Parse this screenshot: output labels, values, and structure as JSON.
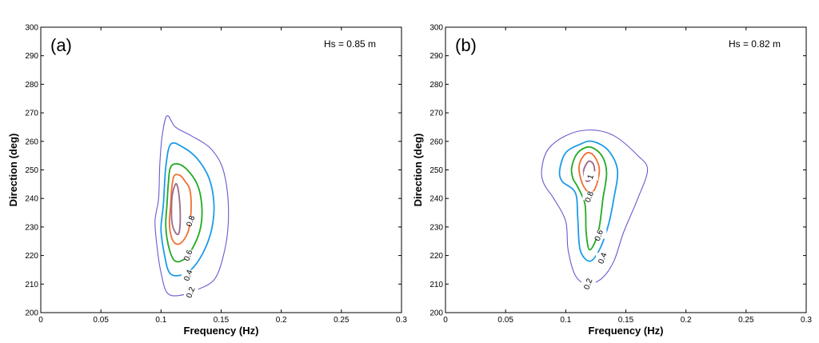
{
  "chart_data": [
    {
      "type": "contour",
      "panel_label": "(a)",
      "annotation": "Hs = 0.85 m",
      "xlabel": "Frequency (Hz)",
      "ylabel": "Direction (deg)",
      "xlim": [
        0,
        0.3
      ],
      "ylim": [
        200,
        300
      ],
      "xticks": [
        "0",
        "0.05",
        "0.1",
        "0.15",
        "0.2",
        "0.25",
        "0.3"
      ],
      "yticks": [
        "200",
        "210",
        "220",
        "230",
        "240",
        "250",
        "260",
        "270",
        "280",
        "290",
        "300"
      ],
      "grid": false,
      "levels": [
        {
          "level": 0.2,
          "label": "0.2",
          "color": "#6a5acd",
          "label_at": [
            0.125,
            207
          ],
          "points": [
            [
              0.098,
              240
            ],
            [
              0.095,
              232
            ],
            [
              0.097,
              222
            ],
            [
              0.1,
              214
            ],
            [
              0.105,
              207
            ],
            [
              0.115,
              206
            ],
            [
              0.13,
              208
            ],
            [
              0.145,
              212
            ],
            [
              0.153,
              222
            ],
            [
              0.156,
              232
            ],
            [
              0.155,
              243
            ],
            [
              0.15,
              252
            ],
            [
              0.14,
              258
            ],
            [
              0.125,
              262
            ],
            [
              0.112,
              265
            ],
            [
              0.105,
              269
            ],
            [
              0.101,
              262
            ],
            [
              0.099,
              252
            ]
          ]
        },
        {
          "level": 0.4,
          "label": "0.4",
          "color": "#1e9be8",
          "label_at": [
            0.123,
            213
          ],
          "points": [
            [
              0.102,
              238
            ],
            [
              0.1,
              229
            ],
            [
              0.103,
              220
            ],
            [
              0.107,
              214
            ],
            [
              0.115,
              213
            ],
            [
              0.125,
              215
            ],
            [
              0.135,
              221
            ],
            [
              0.142,
              229
            ],
            [
              0.144,
              238
            ],
            [
              0.14,
              247
            ],
            [
              0.13,
              254
            ],
            [
              0.118,
              258
            ],
            [
              0.108,
              259
            ],
            [
              0.104,
              251
            ]
          ]
        },
        {
          "level": 0.6,
          "label": "0.6",
          "color": "#22aa22",
          "label_at": [
            0.123,
            220
          ],
          "points": [
            [
              0.105,
              238
            ],
            [
              0.104,
              230
            ],
            [
              0.107,
              222
            ],
            [
              0.112,
              218
            ],
            [
              0.12,
              219
            ],
            [
              0.128,
              224
            ],
            [
              0.133,
              230
            ],
            [
              0.134,
              237
            ],
            [
              0.131,
              244
            ],
            [
              0.124,
              249
            ],
            [
              0.115,
              252
            ],
            [
              0.108,
              251
            ],
            [
              0.106,
              245
            ]
          ]
        },
        {
          "level": 0.8,
          "label": "0.8",
          "color": "#f07030",
          "label_at": [
            0.125,
            232
          ],
          "points": [
            [
              0.108,
              238
            ],
            [
              0.107,
              231
            ],
            [
              0.109,
              226
            ],
            [
              0.113,
              224
            ],
            [
              0.118,
              225
            ],
            [
              0.123,
              229
            ],
            [
              0.125,
              236
            ],
            [
              0.124,
              243
            ],
            [
              0.12,
              246
            ],
            [
              0.116,
              248
            ],
            [
              0.111,
              248
            ],
            [
              0.109,
              244
            ]
          ]
        },
        {
          "level": 1.0,
          "label": "",
          "color": "#9a6a8a",
          "label_at": null,
          "points": [
            [
              0.109,
              232
            ],
            [
              0.112,
              228
            ],
            [
              0.115,
              228
            ],
            [
              0.116,
              234
            ],
            [
              0.115,
              241
            ],
            [
              0.113,
              245
            ],
            [
              0.111,
              244
            ],
            [
              0.109,
              240
            ]
          ]
        }
      ]
    },
    {
      "type": "contour",
      "panel_label": "(b)",
      "annotation": "Hs = 0.82 m",
      "xlabel": "Frequency (Hz)",
      "ylabel": "Direction (deg)",
      "xlim": [
        0,
        0.3
      ],
      "ylim": [
        200,
        300
      ],
      "xticks": [
        "0",
        "0.05",
        "0.1",
        "0.15",
        "0.2",
        "0.25",
        "0.3"
      ],
      "yticks": [
        "200",
        "210",
        "220",
        "230",
        "240",
        "250",
        "260",
        "270",
        "280",
        "290",
        "300"
      ],
      "grid": false,
      "levels": [
        {
          "level": 0.2,
          "label": "0.2",
          "color": "#6a5acd",
          "label_at": [
            0.119,
            210
          ],
          "points": [
            [
              0.08,
              250
            ],
            [
              0.085,
              257
            ],
            [
              0.1,
              262
            ],
            [
              0.12,
              264
            ],
            [
              0.14,
              262
            ],
            [
              0.16,
              255
            ],
            [
              0.168,
              250
            ],
            [
              0.16,
              240
            ],
            [
              0.148,
              228
            ],
            [
              0.14,
              218
            ],
            [
              0.13,
              212
            ],
            [
              0.118,
              210
            ],
            [
              0.108,
              213
            ],
            [
              0.102,
              222
            ],
            [
              0.1,
              232
            ],
            [
              0.09,
              240
            ],
            [
              0.082,
              245
            ]
          ]
        },
        {
          "level": 0.4,
          "label": "0.4",
          "color": "#1e9be8",
          "label_at": [
            0.131,
            219
          ],
          "points": [
            [
              0.095,
              250
            ],
            [
              0.1,
              256
            ],
            [
              0.112,
              259
            ],
            [
              0.122,
              260
            ],
            [
              0.135,
              257
            ],
            [
              0.143,
              250
            ],
            [
              0.14,
              240
            ],
            [
              0.135,
              230
            ],
            [
              0.128,
              222
            ],
            [
              0.12,
              218
            ],
            [
              0.112,
              222
            ],
            [
              0.11,
              233
            ],
            [
              0.108,
              242
            ],
            [
              0.097,
              246
            ]
          ]
        },
        {
          "level": 0.6,
          "label": "0.6",
          "color": "#22aa22",
          "label_at": [
            0.128,
            227
          ],
          "points": [
            [
              0.105,
              251
            ],
            [
              0.11,
              256
            ],
            [
              0.12,
              258
            ],
            [
              0.13,
              255
            ],
            [
              0.134,
              249
            ],
            [
              0.131,
              240
            ],
            [
              0.127,
              228
            ],
            [
              0.12,
              222
            ],
            [
              0.117,
              228
            ],
            [
              0.116,
              238
            ],
            [
              0.11,
              244
            ],
            [
              0.106,
              247
            ]
          ]
        },
        {
          "level": 0.8,
          "label": "0.8",
          "color": "#f07030",
          "label_at": [
            0.12,
            240.5
          ],
          "points": [
            [
              0.111,
              251
            ],
            [
              0.115,
              255
            ],
            [
              0.12,
              256
            ],
            [
              0.125,
              254
            ],
            [
              0.128,
              250
            ],
            [
              0.125,
              244
            ],
            [
              0.12,
              242
            ],
            [
              0.114,
              245
            ]
          ]
        },
        {
          "level": 1.0,
          "label": "1",
          "color": "#9a6a8a",
          "label_at": [
            0.121,
            247.5
          ],
          "points": [
            [
              0.115,
              250
            ],
            [
              0.119,
              253
            ],
            [
              0.123,
              252
            ],
            [
              0.124,
              249
            ],
            [
              0.122,
              247
            ],
            [
              0.118,
              246
            ],
            [
              0.116,
              247
            ]
          ]
        }
      ]
    }
  ]
}
